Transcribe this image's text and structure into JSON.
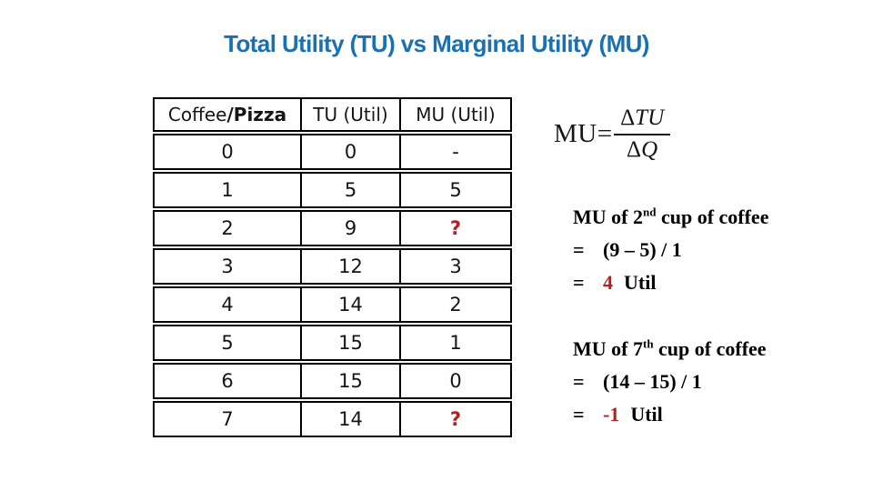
{
  "slide": {
    "title": "Total Utility (TU) vs Marginal Utility (MU)"
  },
  "colors": {
    "title_blue": "#1B70B1",
    "accent_red": "#B51F22"
  },
  "table": {
    "header": {
      "col1_regular": "Coffee",
      "col1_bold": "/Pizza",
      "col2": "TU (Util)",
      "col3": "MU (Util)"
    },
    "rows": [
      {
        "qty": "0",
        "tu": "0",
        "mu": "-",
        "mu_red": false
      },
      {
        "qty": "1",
        "tu": "5",
        "mu": "5",
        "mu_red": false
      },
      {
        "qty": "2",
        "tu": "9",
        "mu": "?",
        "mu_red": true
      },
      {
        "qty": "3",
        "tu": "12",
        "mu": "3",
        "mu_red": false
      },
      {
        "qty": "4",
        "tu": "14",
        "mu": "2",
        "mu_red": false
      },
      {
        "qty": "5",
        "tu": "15",
        "mu": "1",
        "mu_red": false
      },
      {
        "qty": "6",
        "tu": "15",
        "mu": "0",
        "mu_red": false
      },
      {
        "qty": "7",
        "tu": "14",
        "mu": "?",
        "mu_red": true
      }
    ]
  },
  "formula": {
    "lhs": "MU",
    "equals": "=",
    "numerator_delta": "Δ",
    "numerator_var": "TU",
    "denominator_delta": "Δ",
    "denominator_var": "Q"
  },
  "examples": [
    {
      "heading_prefix": "MU of 2",
      "heading_sup": "nd",
      "heading_suffix": " cup of coffee",
      "eq1_sign": "=",
      "eq1_expr": "(9 – 5) / 1",
      "eq2_sign": "=",
      "eq2_value": "4",
      "eq2_unit": "Util"
    },
    {
      "heading_prefix": "MU of 7",
      "heading_sup": "th",
      "heading_suffix": " cup of coffee",
      "eq1_sign": "=",
      "eq1_expr": "(14 – 15) / 1",
      "eq2_sign": "=",
      "eq2_value": "-1",
      "eq2_unit": "Util"
    }
  ]
}
